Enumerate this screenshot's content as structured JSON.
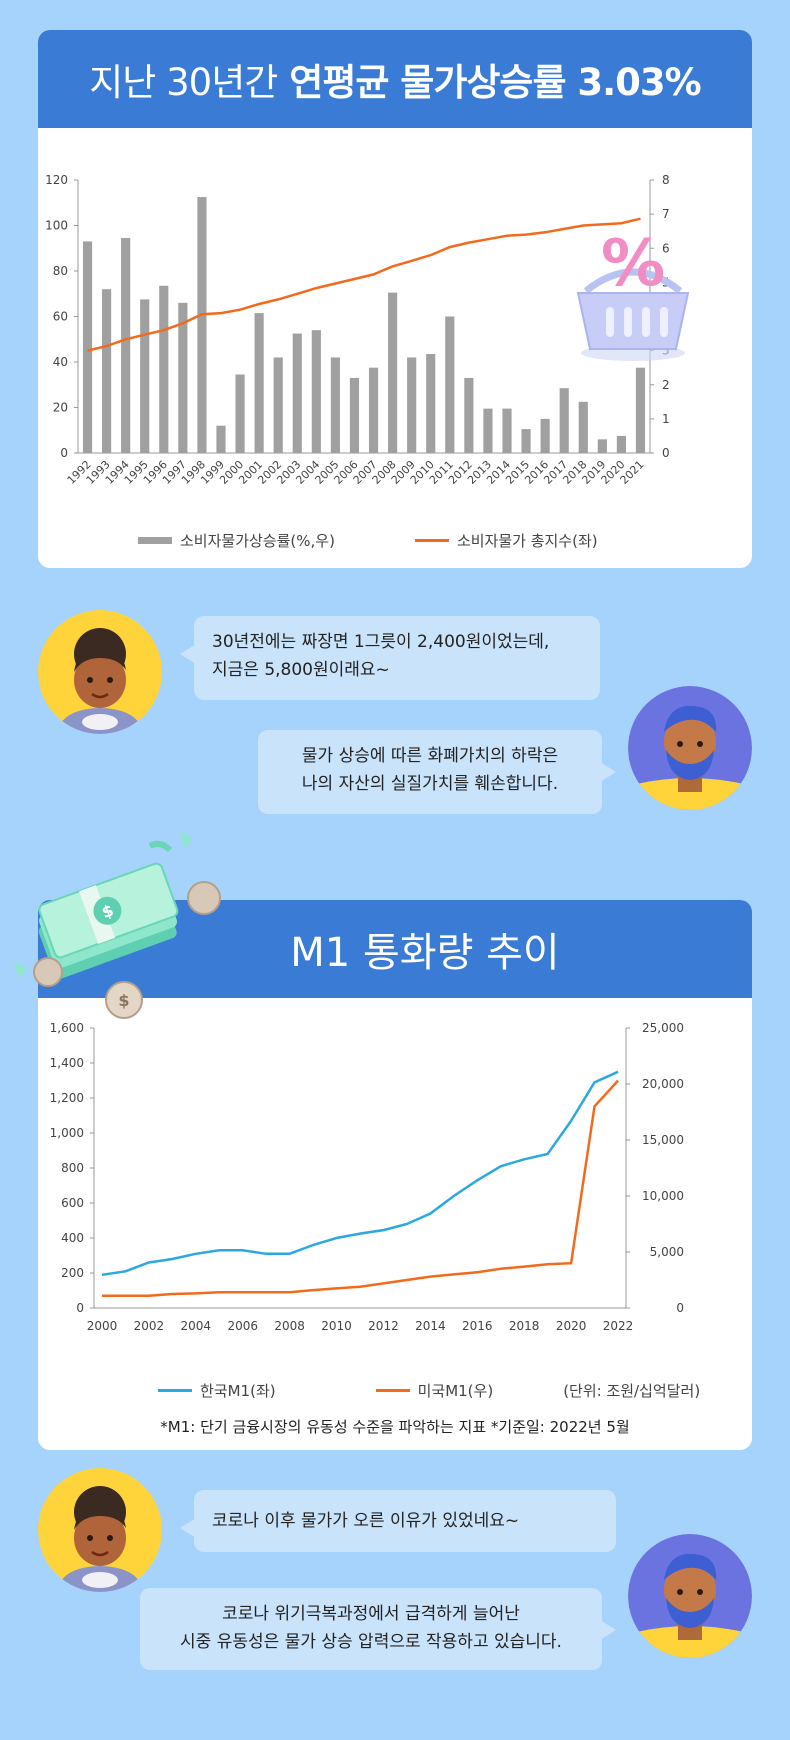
{
  "card1": {
    "title_light": "지난 30년간",
    "title_bold": "연평균 물가상승률 3.03%",
    "legend": {
      "bar": "소비자물가상승률(%,우)",
      "line": "소비자물가 총지수(좌)"
    }
  },
  "dialog1": {
    "q_line1": "30년전에는 짜장면 1그릇이 2,400원이었는데,",
    "q_line2": "지금은 5,800원이래요~",
    "a_line1": "물가 상승에 따른 화폐가치의 하락은",
    "a_line2": "나의 자산의 실질가치를 훼손합니다."
  },
  "card2": {
    "title": "M1 통화량 추이",
    "legend": {
      "kr": "한국M1(좌)",
      "us": "미국M1(우)",
      "unit": "(단위: 조원/십억달러)"
    },
    "note": "*M1: 단기 금융시장의 유동성 수준을 파악하는 지표  *기준일: 2022년 5월"
  },
  "dialog2": {
    "q_line1": "코로나 이후 물가가 오른 이유가 있었네요~",
    "a_line1": "코로나 위기극복과정에서  급격하게 늘어난",
    "a_line2": "시중 유동성은 물가 상승 압력으로 작용하고 있습니다."
  },
  "colors": {
    "bar": "#a0a0a0",
    "orange": "#f26b1d",
    "blue": "#2ba8e0",
    "header": "#3a7bd5"
  },
  "chart_data": [
    {
      "type": "bar",
      "categories": [
        "1992",
        "1993",
        "1994",
        "1995",
        "1996",
        "1997",
        "1998",
        "1999",
        "2000",
        "2001",
        "2002",
        "2003",
        "2004",
        "2005",
        "2006",
        "2007",
        "2008",
        "2009",
        "2010",
        "2011",
        "2012",
        "2013",
        "2014",
        "2015",
        "2016",
        "2017",
        "2018",
        "2019",
        "2020",
        "2021"
      ],
      "series": [
        {
          "name": "소비자물가상승률(%,우)",
          "type": "bar",
          "axis": "right",
          "values": [
            6.2,
            4.8,
            6.3,
            4.5,
            4.9,
            4.4,
            7.5,
            0.8,
            2.3,
            4.1,
            2.8,
            3.5,
            3.6,
            2.8,
            2.2,
            2.5,
            4.7,
            2.8,
            2.9,
            4.0,
            2.2,
            1.3,
            1.3,
            0.7,
            1.0,
            1.9,
            1.5,
            0.4,
            0.5,
            2.5
          ]
        },
        {
          "name": "소비자물가 총지수(좌)",
          "type": "line",
          "axis": "left",
          "values": [
            45,
            47,
            50,
            52,
            54,
            57,
            61,
            61.5,
            63,
            65.5,
            67.5,
            70,
            72.5,
            74.5,
            76.5,
            78.5,
            82,
            84.5,
            87,
            90.5,
            92.5,
            94,
            95.5,
            96,
            97,
            98.5,
            100,
            100.5,
            101,
            103
          ]
        }
      ],
      "ylim_left": [
        0,
        120
      ],
      "yticks_left": [
        0,
        20,
        40,
        60,
        80,
        100,
        120
      ],
      "ylim_right": [
        0,
        8
      ],
      "yticks_right": [
        0,
        1,
        2,
        3,
        4,
        5,
        6,
        7,
        8
      ],
      "legend_position": "bottom"
    },
    {
      "type": "line",
      "x": [
        2000,
        2001,
        2002,
        2003,
        2004,
        2005,
        2006,
        2007,
        2008,
        2009,
        2010,
        2011,
        2012,
        2013,
        2014,
        2015,
        2016,
        2017,
        2018,
        2019,
        2020,
        2021,
        2022
      ],
      "series": [
        {
          "name": "한국M1(좌)",
          "axis": "left",
          "values": [
            190,
            210,
            260,
            280,
            310,
            330,
            330,
            310,
            310,
            360,
            400,
            425,
            445,
            480,
            540,
            640,
            730,
            810,
            850,
            880,
            1070,
            1290,
            1350
          ]
        },
        {
          "name": "미국M1(우)",
          "axis": "right",
          "values": [
            1100,
            1100,
            1100,
            1250,
            1300,
            1400,
            1400,
            1400,
            1400,
            1600,
            1750,
            1900,
            2200,
            2500,
            2800,
            3000,
            3200,
            3500,
            3700,
            3900,
            4000,
            18000,
            20300
          ]
        }
      ],
      "xticks": [
        2000,
        2002,
        2004,
        2006,
        2008,
        2010,
        2012,
        2014,
        2016,
        2018,
        2020,
        2022
      ],
      "ylim_left": [
        0,
        1600
      ],
      "yticks_left": [
        "0",
        "200",
        "400",
        "600",
        "800",
        "1,000",
        "1,200",
        "1,400",
        "1,600"
      ],
      "ylim_right": [
        0,
        25000
      ],
      "yticks_right": [
        "0",
        "5,000",
        "10,000",
        "15,000",
        "20,000",
        "25,000"
      ],
      "legend_position": "bottom"
    }
  ]
}
